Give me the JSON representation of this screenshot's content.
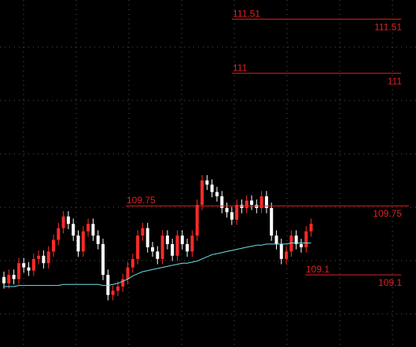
{
  "chart_data": {
    "type": "candlestick",
    "ylim": [
      108.42,
      111.69
    ],
    "grid": true,
    "up_color": "#ff2a2a",
    "down_color": "#ffffff",
    "open": [
      109.08,
      109.02,
      109.1,
      109.06,
      109.21,
      109.17,
      109.14,
      109.25,
      109.28,
      109.21,
      109.32,
      109.43,
      109.54,
      109.65,
      109.58,
      109.47,
      109.32,
      109.51,
      109.58,
      109.47,
      109.39,
      109.1,
      108.91,
      108.95,
      108.99,
      109.06,
      109.17,
      109.25,
      109.47,
      109.54,
      109.36,
      109.32,
      109.25,
      109.47,
      109.39,
      109.28,
      109.47,
      109.39,
      109.32,
      109.47,
      109.76,
      109.99,
      109.95,
      109.88,
      109.84,
      109.73,
      109.69,
      109.62,
      109.76,
      109.73,
      109.8,
      109.76,
      109.73,
      109.84,
      109.73,
      109.47,
      109.39,
      109.25,
      109.32,
      109.47,
      109.39,
      109.36,
      109.51
    ],
    "high": [
      109.13,
      109.15,
      109.15,
      109.26,
      109.26,
      109.22,
      109.3,
      109.33,
      109.33,
      109.37,
      109.48,
      109.59,
      109.7,
      109.7,
      109.63,
      109.52,
      109.56,
      109.63,
      109.63,
      109.52,
      109.44,
      109.15,
      109.0,
      109.04,
      109.11,
      109.22,
      109.3,
      109.52,
      109.59,
      109.59,
      109.41,
      109.37,
      109.52,
      109.52,
      109.44,
      109.52,
      109.52,
      109.44,
      109.52,
      109.81,
      110.04,
      110.04,
      110.0,
      109.93,
      109.89,
      109.78,
      109.74,
      109.81,
      109.81,
      109.85,
      109.85,
      109.81,
      109.89,
      109.89,
      109.78,
      109.52,
      109.44,
      109.37,
      109.52,
      109.52,
      109.44,
      109.56,
      109.63
    ],
    "low": [
      108.97,
      108.97,
      109.01,
      109.01,
      109.12,
      109.09,
      109.09,
      109.2,
      109.16,
      109.16,
      109.27,
      109.38,
      109.49,
      109.53,
      109.42,
      109.27,
      109.27,
      109.46,
      109.42,
      109.34,
      109.05,
      108.86,
      108.86,
      108.9,
      108.94,
      109.01,
      109.12,
      109.2,
      109.42,
      109.31,
      109.27,
      109.2,
      109.2,
      109.34,
      109.23,
      109.23,
      109.34,
      109.27,
      109.27,
      109.42,
      109.71,
      109.9,
      109.83,
      109.79,
      109.68,
      109.64,
      109.57,
      109.57,
      109.68,
      109.68,
      109.71,
      109.68,
      109.68,
      109.68,
      109.42,
      109.34,
      109.2,
      109.2,
      109.27,
      109.34,
      109.31,
      109.31,
      109.46
    ],
    "close": [
      109.02,
      109.1,
      109.06,
      109.21,
      109.17,
      109.14,
      109.25,
      109.28,
      109.21,
      109.32,
      109.43,
      109.54,
      109.65,
      109.58,
      109.47,
      109.32,
      109.51,
      109.58,
      109.47,
      109.39,
      109.1,
      108.91,
      108.95,
      108.99,
      109.06,
      109.17,
      109.25,
      109.47,
      109.54,
      109.36,
      109.32,
      109.25,
      109.47,
      109.39,
      109.28,
      109.47,
      109.39,
      109.32,
      109.47,
      109.76,
      109.99,
      109.95,
      109.88,
      109.84,
      109.73,
      109.69,
      109.62,
      109.76,
      109.73,
      109.8,
      109.76,
      109.73,
      109.84,
      109.73,
      109.47,
      109.39,
      109.25,
      109.32,
      109.47,
      109.39,
      109.36,
      109.51,
      109.58
    ],
    "ma": {
      "color": "#6fe0e8",
      "values": [
        108.99,
        108.99,
        108.99,
        109.0,
        109.0,
        109.0,
        109.0,
        109.0,
        109.0,
        109.0,
        109.0,
        109.0,
        109.01,
        109.01,
        109.01,
        109.01,
        109.01,
        109.01,
        109.01,
        109.01,
        109.0,
        109.0,
        109.01,
        109.02,
        109.04,
        109.06,
        109.09,
        109.11,
        109.13,
        109.14,
        109.15,
        109.16,
        109.17,
        109.18,
        109.19,
        109.2,
        109.21,
        109.21,
        109.22,
        109.23,
        109.25,
        109.27,
        109.29,
        109.3,
        109.31,
        109.32,
        109.33,
        109.34,
        109.35,
        109.36,
        109.37,
        109.38,
        109.38,
        109.39,
        109.39,
        109.39,
        109.39,
        109.39,
        109.4,
        109.4,
        109.4,
        109.4,
        109.4
      ]
    },
    "levels": {
      "color": "#e02020",
      "values": [
        111.51,
        111.0,
        109.75,
        109.1
      ]
    }
  }
}
